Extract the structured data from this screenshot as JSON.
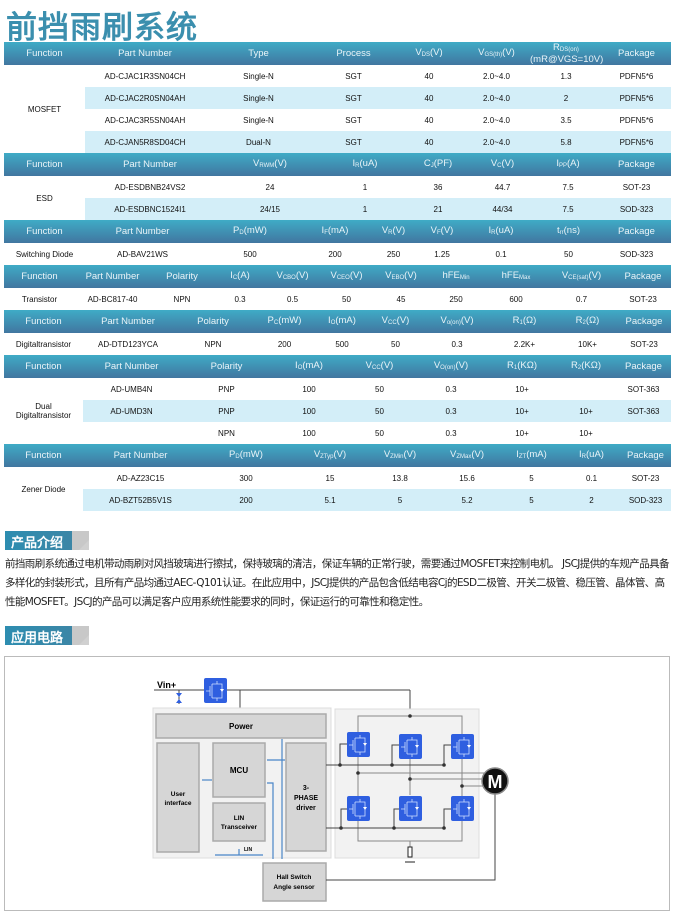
{
  "title": "前挡雨刷系统",
  "tables": [
    {
      "function": "MOSFET",
      "headers": [
        {
          "m": "Function"
        },
        {
          "m": "Part Number"
        },
        {
          "m": "Type"
        },
        {
          "m": "Process"
        },
        {
          "m": "V",
          "s": "DS",
          "t": "(V)"
        },
        {
          "m": "V",
          "s": "GS(th)",
          "t": "(V)"
        },
        {
          "m": "R",
          "s": "DS(on)",
          "t": "",
          "l2": "(mR@VGS=10V)"
        },
        {
          "m": "Package"
        }
      ],
      "rows": [
        [
          "AD-CJAC1R3SN04CH",
          "Single-N",
          "SGT",
          "40",
          "2.0~4.0",
          "1.3",
          "PDFN5*6"
        ],
        [
          "AD-CJAC2R0SN04AH",
          "Single-N",
          "SGT",
          "40",
          "2.0~4.0",
          "2",
          "PDFN5*6"
        ],
        [
          "AD-CJAC3R5SN04AH",
          "Single-N",
          "SGT",
          "40",
          "2.0~4.0",
          "3.5",
          "PDFN5*6"
        ],
        [
          "AD-CJAN5R8SD04CH",
          "Dual-N",
          "SGT",
          "40",
          "2.0~4.0",
          "5.8",
          "PDFN5*6"
        ]
      ]
    },
    {
      "function": "ESD",
      "headers": [
        {
          "m": "Function"
        },
        {
          "m": "Part Number"
        },
        {
          "m": "V",
          "s": "RWM",
          "t": "(V)"
        },
        {
          "m": "I",
          "s": "R",
          "t": "(uA)"
        },
        {
          "m": "C",
          "s": "J",
          "t": "(PF)"
        },
        {
          "m": "V",
          "s": "C",
          "t": "(V)"
        },
        {
          "m": "I",
          "s": "PP",
          "t": "(A)"
        },
        {
          "m": "Package"
        }
      ],
      "rows": [
        [
          "AD-ESDBNB24VS2",
          "24",
          "1",
          "36",
          "44.7",
          "7.5",
          "SOT-23"
        ],
        [
          "AD-ESDBNC1524I1",
          "24/15",
          "1",
          "21",
          "44/34",
          "7.5",
          "SOD-323"
        ]
      ]
    },
    {
      "function": "Switching Diode",
      "headers": [
        {
          "m": "Function"
        },
        {
          "m": "Part Number"
        },
        {
          "m": "P",
          "s": "D",
          "t": "(mW)"
        },
        {
          "m": "I",
          "s": "F",
          "t": "(mA)"
        },
        {
          "m": "V",
          "s": "R",
          "t": "(V)"
        },
        {
          "m": "V",
          "s": "F",
          "t": "(V)"
        },
        {
          "m": "I",
          "s": "R",
          "t": "(uA)"
        },
        {
          "m": "t",
          "s": "rr",
          "t": "(ns)"
        },
        {
          "m": "Package"
        }
      ],
      "rows": [
        [
          "AD-BAV21WS",
          "500",
          "200",
          "250",
          "1.25",
          "0.1",
          "50",
          "SOD-323"
        ]
      ]
    },
    {
      "function": "Transistor",
      "headers": [
        {
          "m": "Function"
        },
        {
          "m": "Part Number"
        },
        {
          "m": "Polarity"
        },
        {
          "m": "I",
          "s": "C",
          "t": "(A)"
        },
        {
          "m": "V",
          "s": "CBO",
          "t": "(V)"
        },
        {
          "m": "V",
          "s": "CEO",
          "t": "(V)"
        },
        {
          "m": "V",
          "s": "EBO",
          "t": "(V)"
        },
        {
          "m": "hFE",
          "s": "Min",
          "t": ""
        },
        {
          "m": "hFE",
          "s": "Max",
          "t": ""
        },
        {
          "m": "V",
          "s": "CE(sat)",
          "t": "(V)"
        },
        {
          "m": "Package"
        }
      ],
      "rows": [
        [
          "AD-BC817-40",
          "NPN",
          "0.3",
          "0.5",
          "50",
          "45",
          "250",
          "600",
          "0.7",
          "SOT-23"
        ]
      ]
    },
    {
      "function": "Digitaltransistor",
      "headers": [
        {
          "m": "Function"
        },
        {
          "m": "Part Number"
        },
        {
          "m": "Polarity"
        },
        {
          "m": "P",
          "s": "C",
          "t": "(mW)"
        },
        {
          "m": "I",
          "s": "O",
          "t": "(mA)"
        },
        {
          "m": "V",
          "s": "CC",
          "t": "(V)"
        },
        {
          "m": "V",
          "s": "o(on)",
          "t": "(V)"
        },
        {
          "m": "R",
          "s": "1",
          "t": "(Ω)"
        },
        {
          "m": "R",
          "s": "2",
          "t": "(Ω)"
        },
        {
          "m": "Package"
        }
      ],
      "rows": [
        [
          "AD-DTD123YCA",
          "NPN",
          "200",
          "500",
          "50",
          "0.3",
          "2.2K+",
          "10K+",
          "SOT-23"
        ]
      ]
    },
    {
      "function": "Dual Digitaltransistor",
      "headers": [
        {
          "m": "Function"
        },
        {
          "m": "Part Number"
        },
        {
          "m": "Polarity"
        },
        {
          "m": "I",
          "s": "O",
          "t": "(mA)"
        },
        {
          "m": "V",
          "s": "CC",
          "t": "(V)"
        },
        {
          "m": "V",
          "s": "O(on)",
          "t": "(V)"
        },
        {
          "m": "R",
          "s": "1",
          "t": "(KΩ)"
        },
        {
          "m": "R",
          "s": "2",
          "t": "(KΩ)"
        },
        {
          "m": "Package"
        }
      ],
      "rows": [
        [
          "AD-UMB4N",
          "PNP",
          "100",
          "50",
          "0.3",
          "10+",
          "",
          "SOT-363"
        ],
        [
          "AD-UMD3N",
          "PNP",
          "100",
          "50",
          "0.3",
          "10+",
          "10+",
          "SOT-363"
        ],
        [
          "",
          "NPN",
          "100",
          "50",
          "0.3",
          "10+",
          "10+",
          ""
        ]
      ]
    },
    {
      "function": "Zener Diode",
      "headers": [
        {
          "m": "Function"
        },
        {
          "m": "Part Number"
        },
        {
          "m": "P",
          "s": "D",
          "t": "(mW)"
        },
        {
          "m": "V",
          "s": "ZTyp",
          "t": "(V)"
        },
        {
          "m": "V",
          "s": "ZMin",
          "t": "(V)"
        },
        {
          "m": "V",
          "s": "ZMax",
          "t": "(V)"
        },
        {
          "m": "I",
          "s": "ZT",
          "t": "(mA)"
        },
        {
          "m": "I",
          "s": "R",
          "t": "(uA)"
        },
        {
          "m": "Package"
        }
      ],
      "rows": [
        [
          "AD-AZ23C15",
          "300",
          "15",
          "13.8",
          "15.6",
          "5",
          "0.1",
          "SOT-23"
        ],
        [
          "AD-BZT52B5V1S",
          "200",
          "5.1",
          "5",
          "5.2",
          "5",
          "2",
          "SOD-323"
        ]
      ]
    }
  ],
  "sections": {
    "intro": "产品介绍",
    "circuit": "应用电路"
  },
  "intro_text": "前挡雨刷系统通过电机带动雨刷对风挡玻璃进行擦拭，保持玻璃的清洁，保证车辆的正常行驶，需要通过MOSFET来控制电机。 JSCJ提供的车规产品具备多样化的封装形式，且所有产品均通过AEC-Q101认证。在此应用中，JSCJ提供的产品包含低结电容Cj的ESD二极管、开关二极管、稳压管、晶体管、高性能MOSFET。JSCJ的产品可以满足客户应用系统性能要求的同时，保证运行的可靠性和稳定性。",
  "diagram": {
    "vin": "Vin+",
    "power": "Power",
    "user1": "User",
    "user2": "interface",
    "mcu": "MCU",
    "lin1": "LIN",
    "lin2": "Transceiver",
    "lin_bus": "LIN",
    "drv1": "3-",
    "drv2": "PHASE",
    "drv3": "driver",
    "hall1": "Hall Switch",
    "hall2": "Angle sensor",
    "motor": "M"
  },
  "colors": {
    "header_top": "#3fabc6",
    "header_bottom": "#4176a0",
    "stripe": "#d3eef8",
    "title": "#3b8fae",
    "device": "#2f5fe0"
  }
}
